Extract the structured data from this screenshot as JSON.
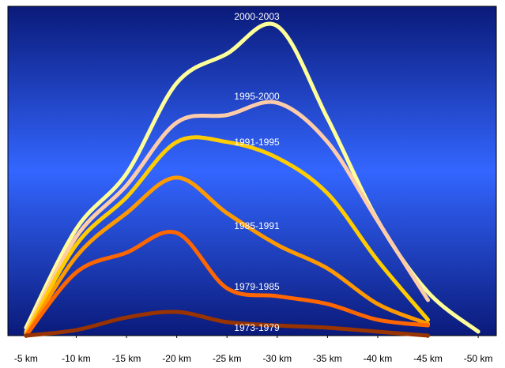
{
  "chart_data": {
    "type": "line",
    "xlim": [
      -3.2,
      -51.8
    ],
    "xticks": [
      {
        "value": -5,
        "label": "-5 km"
      },
      {
        "value": -10,
        "label": "-10 km"
      },
      {
        "value": -15,
        "label": "-15 km"
      },
      {
        "value": -20,
        "label": "-20 km"
      },
      {
        "value": -25,
        "label": "-25 km"
      },
      {
        "value": -30,
        "label": "-30 km"
      },
      {
        "value": -35,
        "label": "-35 km"
      },
      {
        "value": -40,
        "label": "-40 km"
      },
      {
        "value": -45,
        "label": "-45 km"
      },
      {
        "value": -50,
        "label": "-50 km"
      }
    ],
    "ylim": [
      0,
      100
    ],
    "series": [
      {
        "name": "2000-2003",
        "color": "#ffff99",
        "x": [
          -5,
          -10,
          -15,
          -20,
          -25,
          -30,
          -35,
          -40,
          -45,
          -50
        ],
        "values": [
          2.4,
          32.4,
          49.2,
          76.7,
          85.6,
          94,
          66,
          35,
          13.2,
          1.2
        ]
      },
      {
        "name": "1995-2000",
        "color": "#ffccaa",
        "x": [
          -5,
          -10,
          -15,
          -20,
          -25,
          -30,
          -35,
          -40,
          -45
        ],
        "values": [
          1.2,
          30,
          45.6,
          64.7,
          67,
          70.7,
          58.8,
          34.8,
          10.8
        ]
      },
      {
        "name": "1991-1995",
        "color": "#ffcc00",
        "x": [
          -5,
          -10,
          -15,
          -20,
          -25,
          -30,
          -35,
          -40,
          -45
        ],
        "values": [
          0.5,
          27.6,
          42,
          58.8,
          58.8,
          54,
          43.2,
          22.8,
          4.8
        ]
      },
      {
        "name": "1985-1991",
        "color": "#ff9900",
        "x": [
          -5,
          -10,
          -15,
          -20,
          -25,
          -30,
          -35,
          -40,
          -45
        ],
        "values": [
          0,
          24,
          37.2,
          48,
          37.2,
          27.6,
          20.4,
          9.6,
          3.6
        ]
      },
      {
        "name": "1979-1985",
        "color": "#ff6600",
        "x": [
          -5,
          -10,
          -15,
          -20,
          -25,
          -30,
          -35,
          -40,
          -45
        ],
        "values": [
          0,
          19.2,
          25.2,
          31.2,
          14.4,
          12,
          9.6,
          4.8,
          3.1
        ]
      },
      {
        "name": "1973-1979",
        "color": "#993300",
        "x": [
          -5,
          -10,
          -15,
          -20,
          -25,
          -30,
          -35,
          -40,
          -45
        ],
        "values": [
          0,
          1.7,
          5.5,
          7.2,
          4.1,
          3.1,
          2.4,
          1.2,
          0
        ]
      }
    ]
  }
}
